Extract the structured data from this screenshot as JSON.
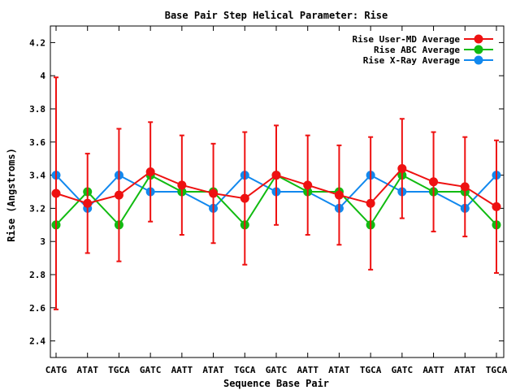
{
  "chart_data": {
    "type": "line",
    "title": "Base Pair Step Helical Parameter: Rise",
    "xlabel": "Sequence Base Pair",
    "ylabel": "Rise (Angstroms)",
    "ylim": [
      2.3,
      4.3
    ],
    "yticks": [
      "2.4",
      "2.6",
      "2.8",
      "3",
      "3.2",
      "3.4",
      "3.6",
      "3.8",
      "4",
      "4.2"
    ],
    "categories": [
      "CATG",
      "ATAT",
      "TGCA",
      "GATC",
      "AATT",
      "ATAT",
      "TGCA",
      "GATC",
      "AATT",
      "ATAT",
      "TGCA",
      "GATC",
      "AATT",
      "ATAT",
      "TGCA"
    ],
    "grid": false,
    "legend_position": "top-right",
    "series": [
      {
        "name": "Rise User-MD Average",
        "color": "#ee1111",
        "values": [
          3.29,
          3.23,
          3.28,
          3.42,
          3.34,
          3.29,
          3.26,
          3.4,
          3.34,
          3.28,
          3.23,
          3.44,
          3.36,
          3.33,
          3.21
        ],
        "error_bars": {
          "low": [
            2.59,
            2.93,
            2.88,
            3.12,
            3.04,
            2.99,
            2.86,
            3.1,
            3.04,
            2.98,
            2.83,
            3.14,
            3.06,
            3.03,
            2.81
          ],
          "high": [
            3.99,
            3.53,
            3.68,
            3.72,
            3.64,
            3.59,
            3.66,
            3.7,
            3.64,
            3.58,
            3.63,
            3.74,
            3.66,
            3.63,
            3.61
          ]
        }
      },
      {
        "name": "Rise ABC Average",
        "color": "#11bb11",
        "values": [
          3.1,
          3.3,
          3.1,
          3.4,
          3.3,
          3.3,
          3.1,
          3.4,
          3.3,
          3.3,
          3.1,
          3.4,
          3.3,
          3.3,
          3.1
        ]
      },
      {
        "name": "Rise X-Ray Average",
        "color": "#1188ee",
        "values": [
          3.4,
          3.2,
          3.4,
          3.3,
          3.3,
          3.2,
          3.4,
          3.3,
          3.3,
          3.2,
          3.4,
          3.3,
          3.3,
          3.2,
          3.4
        ]
      }
    ]
  }
}
